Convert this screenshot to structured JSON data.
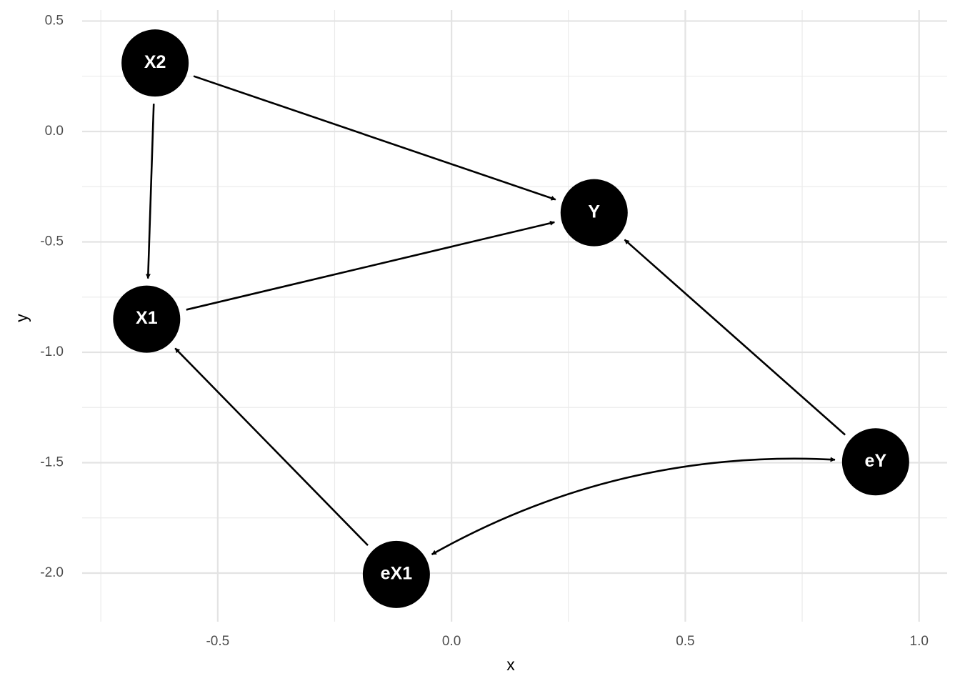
{
  "chart_data": {
    "type": "dag",
    "x_label": "x",
    "y_label": "y",
    "xlim": [
      -0.79,
      1.06
    ],
    "ylim": [
      -2.22,
      0.55
    ],
    "xticks": [
      {
        "value": -0.5,
        "label": "-0.5"
      },
      {
        "value": 0,
        "label": "0.0"
      },
      {
        "value": 0.5,
        "label": "0.5"
      },
      {
        "value": 1,
        "label": "1.0"
      }
    ],
    "yticks": [
      {
        "value": 0.5,
        "label": "0.5"
      },
      {
        "value": 0,
        "label": "0.0"
      },
      {
        "value": -0.5,
        "label": "-0.5"
      },
      {
        "value": -1,
        "label": "-1.0"
      },
      {
        "value": -1.5,
        "label": "-1.5"
      },
      {
        "value": -2,
        "label": "-2.0"
      }
    ],
    "x_minor_grid": [
      -0.75,
      -0.25,
      0.25,
      0.75
    ],
    "y_minor_grid": [
      0.25,
      -0.25,
      -0.75,
      -1.25,
      -1.75
    ],
    "grid": true,
    "node_color": "#000000",
    "label_color": "#ffffff",
    "edge_color": "#000000",
    "nodes": [
      {
        "name": "X2",
        "x": -0.634,
        "y": 0.31
      },
      {
        "name": "Y",
        "x": 0.305,
        "y": -0.368
      },
      {
        "name": "X1",
        "x": -0.652,
        "y": -0.85
      },
      {
        "name": "eX1",
        "x": -0.118,
        "y": -2.006
      },
      {
        "name": "eY",
        "x": 0.907,
        "y": -1.496
      }
    ],
    "edges": [
      {
        "from": "X2",
        "to": "Y"
      },
      {
        "from": "X2",
        "to": "X1"
      },
      {
        "from": "X1",
        "to": "Y"
      },
      {
        "from": "eY",
        "to": "Y"
      },
      {
        "from": "eX1",
        "to": "X1"
      },
      {
        "from": "eY",
        "to": "eX1",
        "bidirected": true
      }
    ]
  }
}
